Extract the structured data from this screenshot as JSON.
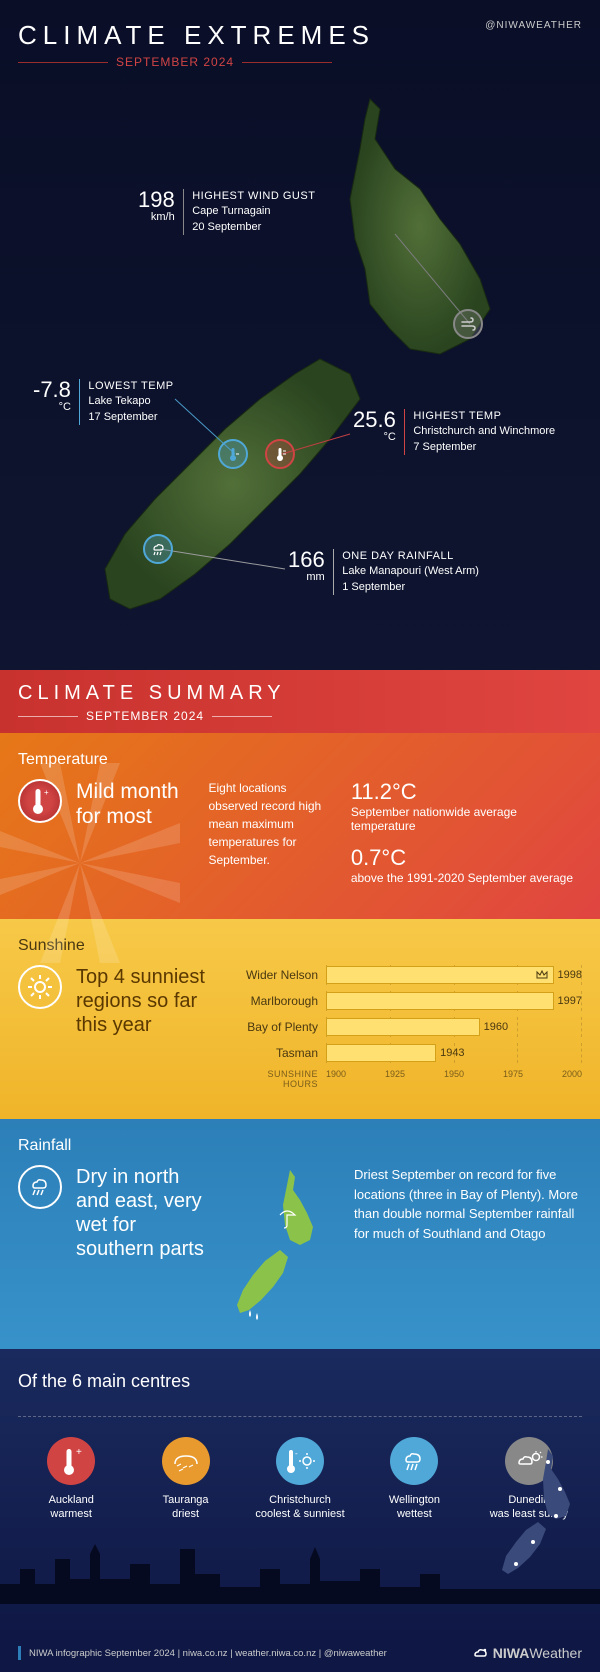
{
  "header": {
    "title": "CLIMATE EXTREMES",
    "subtitle": "SEPTEMBER 2024",
    "handle": "@NIWAWEATHER"
  },
  "extremes": {
    "wind": {
      "value": "198",
      "unit": "km/h",
      "label": "HIGHEST WIND GUST",
      "location": "Cape Turnagain",
      "date": "20 September"
    },
    "lowtemp": {
      "value": "-7.8",
      "unit": "°C",
      "label": "LOWEST TEMP",
      "location": "Lake Tekapo",
      "date": "17 September"
    },
    "hightemp": {
      "value": "25.6",
      "unit": "°C",
      "label": "HIGHEST TEMP",
      "location": "Christchurch and Winchmore",
      "date": "7 September"
    },
    "rainfall": {
      "value": "166",
      "unit": "mm",
      "label": "ONE DAY RAINFALL",
      "location": "Lake Manapouri (West Arm)",
      "date": "1 September"
    }
  },
  "summary_header": {
    "title": "CLIMATE SUMMARY",
    "subtitle": "SEPTEMBER 2024"
  },
  "temperature": {
    "label": "Temperature",
    "headline": "Mild month for most",
    "details": "Eight locations observed record high mean maximum temperatures for September.",
    "stat1_value": "11.2°C",
    "stat1_desc": "September nationwide average temperature",
    "stat2_value": "0.7°C",
    "stat2_desc": "above the 1991-2020 September average"
  },
  "sunshine": {
    "label": "Sunshine",
    "headline": "Top 4 sunniest regions so far this year",
    "axis_label": "SUNSHINE HOURS",
    "xmin": 1900,
    "xmax": 2000,
    "ticks": [
      "1900",
      "1925",
      "1950",
      "1975",
      "2000"
    ],
    "bars": [
      {
        "name": "Wider Nelson",
        "value": 1998,
        "crown": true
      },
      {
        "name": "Marlborough",
        "value": 1997,
        "crown": false
      },
      {
        "name": "Bay of Plenty",
        "value": 1960,
        "crown": false
      },
      {
        "name": "Tasman",
        "value": 1943,
        "crown": false
      }
    ],
    "bar_color": "#ffe070",
    "bar_border": "#d4a017"
  },
  "rainfall_panel": {
    "label": "Rainfall",
    "headline": "Dry in north and east, very wet for southern parts",
    "details": "Driest September on record for five locations (three in Bay of Plenty). More than double normal September rainfall for much of Southland and Otago"
  },
  "centres": {
    "title": "Of the 6 main centres",
    "items": [
      {
        "city": "Auckland",
        "desc": "warmest",
        "color": "ci-red"
      },
      {
        "city": "Tauranga",
        "desc": "driest",
        "color": "ci-orange"
      },
      {
        "city": "Christchurch",
        "desc": "coolest & sunniest",
        "color": "ci-blue"
      },
      {
        "city": "Wellington",
        "desc": "wettest",
        "color": "ci-blue"
      },
      {
        "city": "Dunedin",
        "desc": "was least sunny",
        "color": "ci-grey"
      }
    ]
  },
  "footer": {
    "text": "NIWA infographic September 2024  |  niwa.co.nz  |  weather.niwa.co.nz  |  @niwaweather",
    "logo1": "NIWA",
    "logo2": "Weather"
  },
  "colors": {
    "red": "#d14444",
    "blue": "#4fa8d8",
    "orange": "#e67817",
    "yellow": "#f7c948",
    "darkblue": "#1a2a5e",
    "grey": "#888"
  }
}
